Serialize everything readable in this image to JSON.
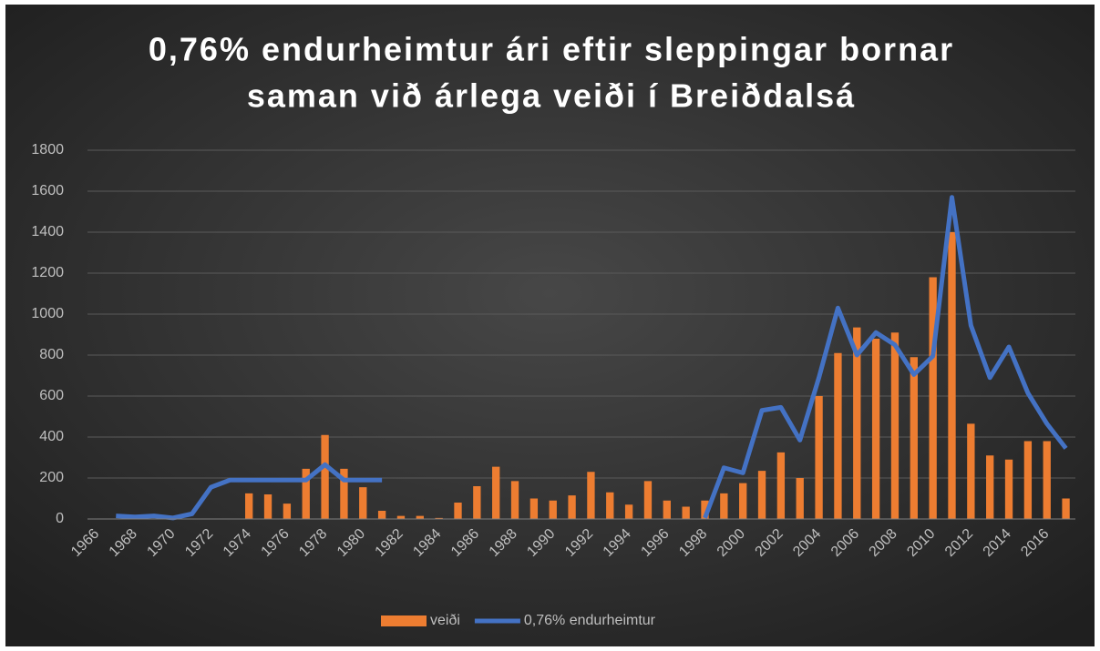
{
  "chart_data": {
    "type": "bar_line",
    "title": [
      "0,76% endurheimtur ári eftir sleppingar bornar",
      "saman við árlega veiði í Breiðdalsá"
    ],
    "categories": [
      "1966",
      null,
      "1968",
      null,
      "1970",
      null,
      "1972",
      null,
      "1974",
      null,
      "1976",
      null,
      "1978",
      null,
      "1980",
      null,
      "1982",
      null,
      "1984",
      null,
      "1986",
      null,
      "1988",
      null,
      "1990",
      null,
      "1992",
      null,
      "1994",
      null,
      "1996",
      null,
      "1998",
      null,
      "2000",
      null,
      "2002",
      null,
      "2004",
      null,
      "2006",
      null,
      "2008",
      null,
      "2010",
      null,
      "2012",
      null,
      "2014",
      null,
      "2016",
      null
    ],
    "series": [
      {
        "name": "veiði",
        "kind": "bar",
        "color": "#ed7d31",
        "values": [
          null,
          null,
          null,
          null,
          null,
          null,
          null,
          null,
          125,
          120,
          75,
          245,
          410,
          245,
          155,
          40,
          15,
          15,
          5,
          80,
          160,
          255,
          185,
          100,
          90,
          115,
          230,
          130,
          70,
          185,
          90,
          60,
          90,
          125,
          175,
          235,
          325,
          200,
          600,
          810,
          935,
          880,
          910,
          790,
          1180,
          1400,
          465,
          310,
          290,
          380,
          380,
          100
        ]
      },
      {
        "name": "0,76% endurheimtur",
        "kind": "line",
        "color": "#4472c4",
        "values": [
          null,
          15,
          10,
          15,
          5,
          25,
          155,
          190,
          190,
          190,
          190,
          190,
          265,
          190,
          190,
          190,
          null,
          null,
          null,
          null,
          null,
          null,
          null,
          null,
          null,
          null,
          null,
          null,
          null,
          null,
          null,
          null,
          5,
          250,
          225,
          530,
          545,
          385,
          690,
          1030,
          800,
          910,
          850,
          705,
          795,
          1570,
          945,
          690,
          840,
          615,
          465,
          345
        ]
      }
    ],
    "ylim": [
      0,
      1800
    ],
    "yticks": [
      0,
      200,
      400,
      600,
      800,
      1000,
      1200,
      1400,
      1600,
      1800
    ],
    "grid": true,
    "legend": "bottom"
  }
}
